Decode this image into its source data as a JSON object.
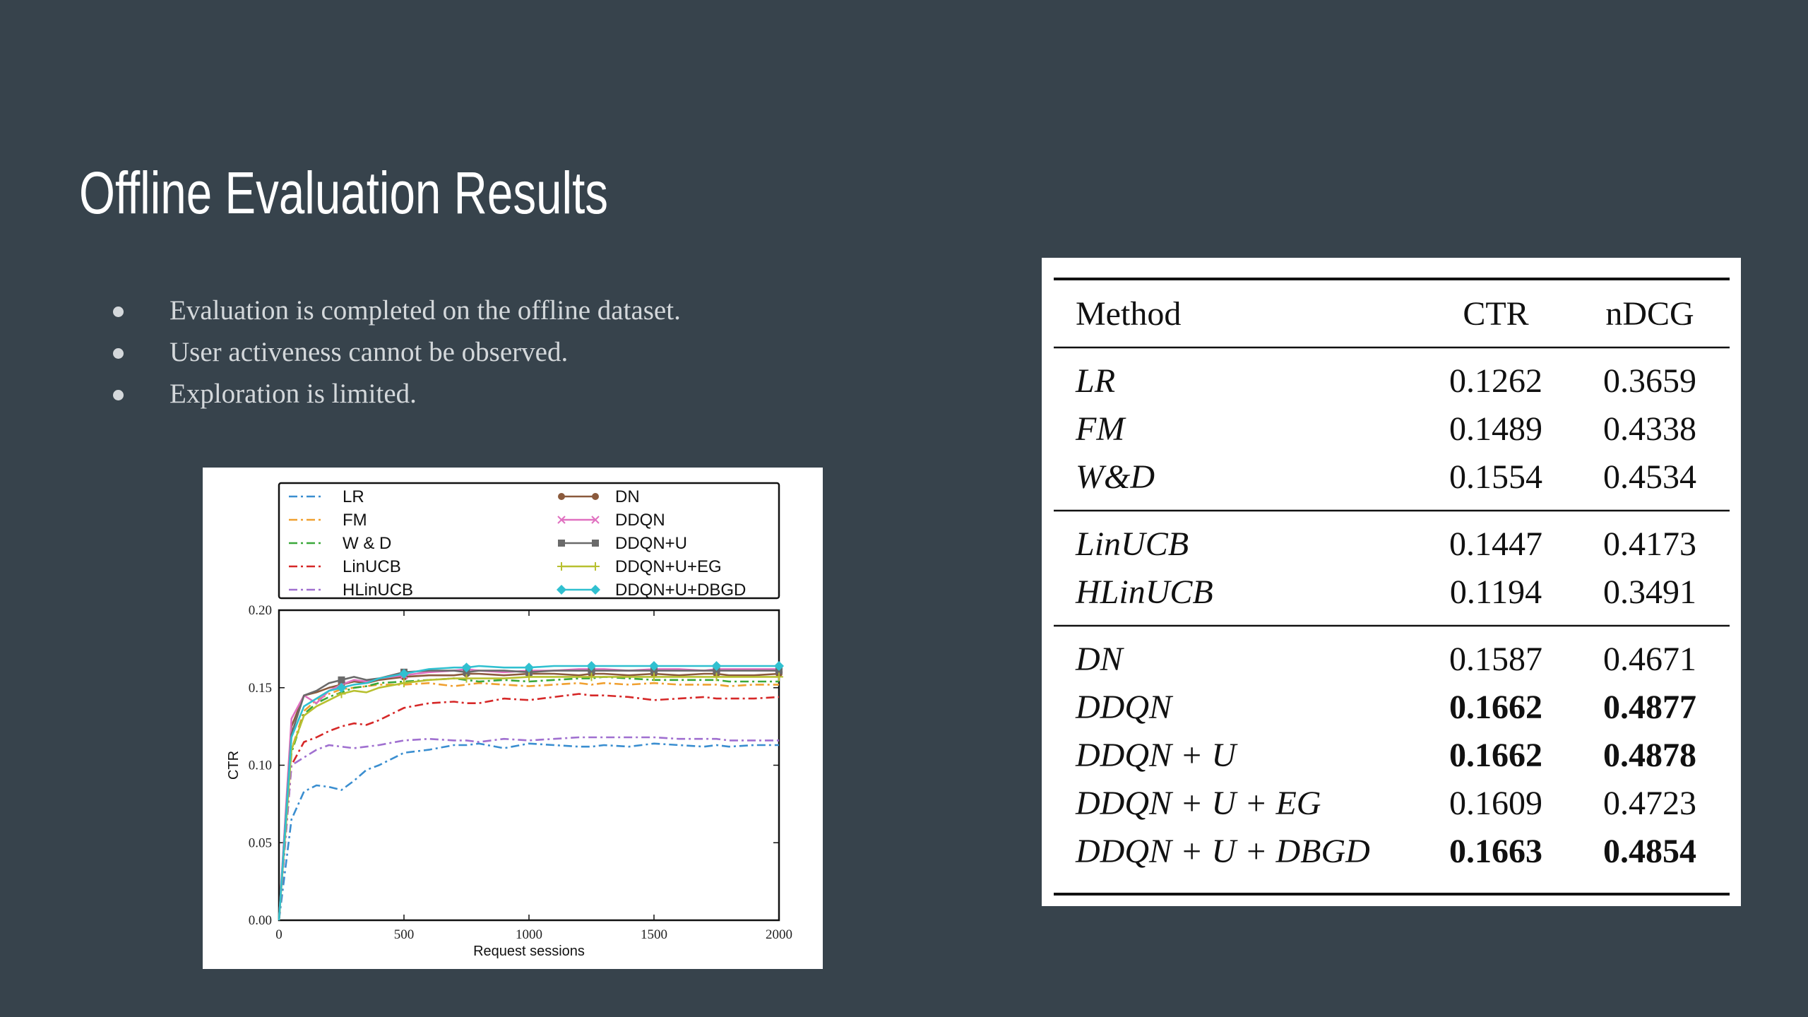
{
  "slide": {
    "title": "Offline Evaluation Results",
    "bullets": [
      "Evaluation is completed on the offline dataset.",
      "User activeness cannot be observed.",
      "Exploration is limited."
    ]
  },
  "table": {
    "headers": [
      "Method",
      "CTR",
      "nDCG"
    ],
    "groups": [
      [
        {
          "method": "LR",
          "ctr": "0.1262",
          "ndcg": "0.3659",
          "bold": false
        },
        {
          "method": "FM",
          "ctr": "0.1489",
          "ndcg": "0.4338",
          "bold": false
        },
        {
          "method": "W&D",
          "ctr": "0.1554",
          "ndcg": "0.4534",
          "bold": false
        }
      ],
      [
        {
          "method": "LinUCB",
          "ctr": "0.1447",
          "ndcg": "0.4173",
          "bold": false
        },
        {
          "method": "HLinUCB",
          "ctr": "0.1194",
          "ndcg": "0.3491",
          "bold": false
        }
      ],
      [
        {
          "method": "DN",
          "ctr": "0.1587",
          "ndcg": "0.4671",
          "bold": false
        },
        {
          "method": "DDQN",
          "ctr": "0.1662",
          "ndcg": "0.4877",
          "bold": true
        },
        {
          "method": "DDQN + U",
          "ctr": "0.1662",
          "ndcg": "0.4878",
          "bold": true
        },
        {
          "method": "DDQN + U + EG",
          "ctr": "0.1609",
          "ndcg": "0.4723",
          "bold": false
        },
        {
          "method": "DDQN + U + DBGD",
          "ctr": "0.1663",
          "ndcg": "0.4854",
          "bold": true
        }
      ]
    ]
  },
  "chart_data": {
    "type": "line",
    "title": "",
    "xlabel": "Request sessions",
    "ylabel": "CTR",
    "xlim": [
      0,
      2000
    ],
    "ylim": [
      0,
      0.2
    ],
    "xticks": [
      "0",
      "500",
      "1000",
      "1500",
      "2000"
    ],
    "yticks": [
      "0.00",
      "0.05",
      "0.10",
      "0.15",
      "0.20"
    ],
    "legend_position": "top",
    "x": [
      0,
      50,
      100,
      150,
      200,
      250,
      300,
      350,
      400,
      500,
      600,
      700,
      750,
      800,
      900,
      1000,
      1100,
      1200,
      1250,
      1300,
      1400,
      1500,
      1600,
      1700,
      1750,
      1800,
      1900,
      2000
    ],
    "series": [
      {
        "name": "LR",
        "color": "#3a8ed0",
        "style": "dashdot",
        "marker": "none",
        "values": [
          0.0,
          0.065,
          0.083,
          0.087,
          0.086,
          0.084,
          0.09,
          0.097,
          0.1,
          0.108,
          0.11,
          0.113,
          0.113,
          0.114,
          0.111,
          0.114,
          0.113,
          0.112,
          0.112,
          0.113,
          0.112,
          0.114,
          0.113,
          0.112,
          0.113,
          0.112,
          0.113,
          0.113
        ]
      },
      {
        "name": "FM",
        "color": "#f0a030",
        "style": "dashdot",
        "marker": "none",
        "values": [
          0.0,
          0.11,
          0.135,
          0.142,
          0.146,
          0.149,
          0.15,
          0.151,
          0.152,
          0.152,
          0.153,
          0.151,
          0.152,
          0.153,
          0.152,
          0.151,
          0.152,
          0.153,
          0.152,
          0.153,
          0.152,
          0.153,
          0.152,
          0.152,
          0.152,
          0.151,
          0.152,
          0.152
        ]
      },
      {
        "name": "W & D",
        "color": "#3aa83a",
        "style": "dashdot",
        "marker": "none",
        "values": [
          0.0,
          0.108,
          0.133,
          0.14,
          0.144,
          0.147,
          0.15,
          0.151,
          0.153,
          0.154,
          0.155,
          0.156,
          0.155,
          0.154,
          0.155,
          0.154,
          0.155,
          0.156,
          0.156,
          0.157,
          0.156,
          0.155,
          0.155,
          0.155,
          0.155,
          0.154,
          0.154,
          0.154
        ]
      },
      {
        "name": "LinUCB",
        "color": "#d62828",
        "style": "dashdot",
        "marker": "none",
        "values": [
          0.0,
          0.1,
          0.115,
          0.118,
          0.122,
          0.125,
          0.127,
          0.126,
          0.129,
          0.137,
          0.14,
          0.141,
          0.14,
          0.14,
          0.143,
          0.142,
          0.144,
          0.146,
          0.145,
          0.145,
          0.144,
          0.142,
          0.143,
          0.144,
          0.143,
          0.143,
          0.143,
          0.144
        ]
      },
      {
        "name": "HLinUCB",
        "color": "#a070d0",
        "style": "dashdot",
        "marker": "none",
        "values": [
          0.0,
          0.1,
          0.105,
          0.11,
          0.113,
          0.112,
          0.111,
          0.112,
          0.113,
          0.116,
          0.117,
          0.116,
          0.116,
          0.115,
          0.117,
          0.116,
          0.117,
          0.118,
          0.118,
          0.118,
          0.118,
          0.118,
          0.117,
          0.117,
          0.117,
          0.116,
          0.116,
          0.116
        ]
      },
      {
        "name": "DN",
        "color": "#8b5a3c",
        "style": "solid",
        "marker": "circle",
        "values": [
          0.0,
          0.125,
          0.145,
          0.147,
          0.15,
          0.152,
          0.154,
          0.153,
          0.155,
          0.157,
          0.158,
          0.158,
          0.159,
          0.159,
          0.158,
          0.159,
          0.159,
          0.158,
          0.159,
          0.159,
          0.158,
          0.159,
          0.158,
          0.159,
          0.159,
          0.158,
          0.158,
          0.159
        ]
      },
      {
        "name": "DDQN",
        "color": "#e070c0",
        "style": "solid",
        "marker": "x",
        "values": [
          0.0,
          0.13,
          0.145,
          0.14,
          0.148,
          0.152,
          0.155,
          0.154,
          0.156,
          0.158,
          0.16,
          0.161,
          0.162,
          0.161,
          0.16,
          0.161,
          0.161,
          0.162,
          0.162,
          0.162,
          0.161,
          0.162,
          0.162,
          0.161,
          0.162,
          0.162,
          0.162,
          0.162
        ]
      },
      {
        "name": "DDQN+U",
        "color": "#6a6a6a",
        "style": "solid",
        "marker": "square",
        "values": [
          0.0,
          0.12,
          0.145,
          0.148,
          0.153,
          0.155,
          0.157,
          0.155,
          0.156,
          0.16,
          0.161,
          0.161,
          0.16,
          0.161,
          0.161,
          0.16,
          0.161,
          0.161,
          0.161,
          0.161,
          0.161,
          0.161,
          0.161,
          0.161,
          0.161,
          0.161,
          0.161,
          0.161
        ]
      },
      {
        "name": "DDQN+U+EG",
        "color": "#b8c030",
        "style": "solid",
        "marker": "plus",
        "values": [
          0.0,
          0.11,
          0.132,
          0.138,
          0.142,
          0.146,
          0.148,
          0.147,
          0.15,
          0.153,
          0.155,
          0.156,
          0.156,
          0.156,
          0.156,
          0.157,
          0.157,
          0.157,
          0.157,
          0.157,
          0.157,
          0.157,
          0.157,
          0.157,
          0.157,
          0.157,
          0.157,
          0.157
        ]
      },
      {
        "name": "DDQN+U+DBGD",
        "color": "#30c0d0",
        "style": "solid",
        "marker": "diamond",
        "values": [
          0.0,
          0.118,
          0.138,
          0.143,
          0.148,
          0.15,
          0.152,
          0.153,
          0.156,
          0.159,
          0.162,
          0.163,
          0.163,
          0.164,
          0.163,
          0.163,
          0.164,
          0.164,
          0.164,
          0.164,
          0.164,
          0.164,
          0.164,
          0.164,
          0.164,
          0.164,
          0.164,
          0.164
        ]
      }
    ]
  }
}
